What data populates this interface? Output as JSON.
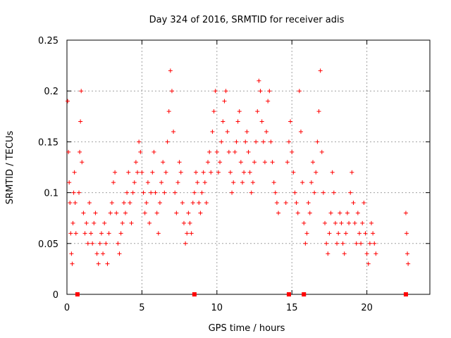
{
  "chart_data": {
    "type": "scatter",
    "title": "Day 324 of 2016, SRMTID for receiver adis",
    "xlabel": "GPS time / hours",
    "ylabel": "SRMTID / TECUs",
    "xlim": [
      0,
      24.2
    ],
    "ylim": [
      0,
      0.25
    ],
    "x_ticks": [
      0,
      5,
      10,
      15,
      20
    ],
    "y_ticks": [
      0,
      0.05,
      0.1,
      0.15,
      0.2,
      0.25
    ],
    "x_tick_labels": [
      "0",
      "5",
      "10",
      "15",
      "20"
    ],
    "y_tick_labels": [
      "0",
      "0.05",
      "0.1",
      "0.15",
      "0.2",
      "0.25"
    ],
    "grid": true,
    "marker": "+",
    "color": "#ff0000",
    "series": [
      {
        "points": [
          [
            0.05,
            0.19
          ],
          [
            0.1,
            0.14
          ],
          [
            0.15,
            0.11
          ],
          [
            0.2,
            0.09
          ],
          [
            0.25,
            0.06
          ],
          [
            0.3,
            0.04
          ],
          [
            0.35,
            0.03
          ],
          [
            0.4,
            0.07
          ],
          [
            0.45,
            0.1
          ],
          [
            0.5,
            0.12
          ],
          [
            0.55,
            0.09
          ],
          [
            0.6,
            0.06
          ],
          [
            0.8,
            0.1
          ],
          [
            0.85,
            0.14
          ],
          [
            0.9,
            0.17
          ],
          [
            0.95,
            0.2
          ],
          [
            1.0,
            0.13
          ],
          [
            1.1,
            0.08
          ],
          [
            1.2,
            0.06
          ],
          [
            1.3,
            0.07
          ],
          [
            1.4,
            0.05
          ],
          [
            1.5,
            0.09
          ],
          [
            1.6,
            0.06
          ],
          [
            1.7,
            0.05
          ],
          [
            1.8,
            0.07
          ],
          [
            1.9,
            0.08
          ],
          [
            2.0,
            0.04
          ],
          [
            2.1,
            0.03
          ],
          [
            2.2,
            0.05
          ],
          [
            2.3,
            0.06
          ],
          [
            2.4,
            0.04
          ],
          [
            2.5,
            0.07
          ],
          [
            2.6,
            0.05
          ],
          [
            2.7,
            0.03
          ],
          [
            2.8,
            0.06
          ],
          [
            2.9,
            0.08
          ],
          [
            3.0,
            0.09
          ],
          [
            3.1,
            0.11
          ],
          [
            3.2,
            0.12
          ],
          [
            3.3,
            0.08
          ],
          [
            3.4,
            0.05
          ],
          [
            3.5,
            0.04
          ],
          [
            3.6,
            0.06
          ],
          [
            3.7,
            0.07
          ],
          [
            3.8,
            0.09
          ],
          [
            3.9,
            0.08
          ],
          [
            4.0,
            0.1
          ],
          [
            4.1,
            0.12
          ],
          [
            4.2,
            0.09
          ],
          [
            4.3,
            0.07
          ],
          [
            4.4,
            0.1
          ],
          [
            4.5,
            0.11
          ],
          [
            4.6,
            0.13
          ],
          [
            4.7,
            0.12
          ],
          [
            4.8,
            0.15
          ],
          [
            4.9,
            0.14
          ],
          [
            5.0,
            0.12
          ],
          [
            5.1,
            0.1
          ],
          [
            5.2,
            0.08
          ],
          [
            5.3,
            0.09
          ],
          [
            5.4,
            0.11
          ],
          [
            5.5,
            0.07
          ],
          [
            5.6,
            0.1
          ],
          [
            5.7,
            0.12
          ],
          [
            5.8,
            0.14
          ],
          [
            5.9,
            0.1
          ],
          [
            6.0,
            0.08
          ],
          [
            6.1,
            0.06
          ],
          [
            6.2,
            0.09
          ],
          [
            6.3,
            0.11
          ],
          [
            6.4,
            0.13
          ],
          [
            6.5,
            0.1
          ],
          [
            6.6,
            0.12
          ],
          [
            6.7,
            0.15
          ],
          [
            6.8,
            0.18
          ],
          [
            6.9,
            0.22
          ],
          [
            7.0,
            0.2
          ],
          [
            7.1,
            0.16
          ],
          [
            7.2,
            0.1
          ],
          [
            7.3,
            0.08
          ],
          [
            7.4,
            0.11
          ],
          [
            7.5,
            0.13
          ],
          [
            7.6,
            0.12
          ],
          [
            7.7,
            0.09
          ],
          [
            7.8,
            0.07
          ],
          [
            7.9,
            0.05
          ],
          [
            8.0,
            0.06
          ],
          [
            8.1,
            0.08
          ],
          [
            8.2,
            0.07
          ],
          [
            8.3,
            0.06
          ],
          [
            8.4,
            0.09
          ],
          [
            8.5,
            0.1
          ],
          [
            8.6,
            0.12
          ],
          [
            8.7,
            0.11
          ],
          [
            8.8,
            0.09
          ],
          [
            8.9,
            0.08
          ],
          [
            9.0,
            0.1
          ],
          [
            9.1,
            0.12
          ],
          [
            9.2,
            0.11
          ],
          [
            9.3,
            0.09
          ],
          [
            9.4,
            0.13
          ],
          [
            9.5,
            0.14
          ],
          [
            9.6,
            0.12
          ],
          [
            9.7,
            0.16
          ],
          [
            9.8,
            0.18
          ],
          [
            9.9,
            0.2
          ],
          [
            10.0,
            0.14
          ],
          [
            10.1,
            0.12
          ],
          [
            10.2,
            0.13
          ],
          [
            10.3,
            0.15
          ],
          [
            10.4,
            0.17
          ],
          [
            10.5,
            0.19
          ],
          [
            10.6,
            0.2
          ],
          [
            10.7,
            0.16
          ],
          [
            10.8,
            0.14
          ],
          [
            10.9,
            0.12
          ],
          [
            11.0,
            0.1
          ],
          [
            11.1,
            0.11
          ],
          [
            11.2,
            0.14
          ],
          [
            11.3,
            0.15
          ],
          [
            11.4,
            0.17
          ],
          [
            11.5,
            0.18
          ],
          [
            11.6,
            0.13
          ],
          [
            11.7,
            0.11
          ],
          [
            11.8,
            0.12
          ],
          [
            11.9,
            0.15
          ],
          [
            12.0,
            0.16
          ],
          [
            12.1,
            0.14
          ],
          [
            12.2,
            0.12
          ],
          [
            12.3,
            0.1
          ],
          [
            12.4,
            0.11
          ],
          [
            12.5,
            0.13
          ],
          [
            12.6,
            0.15
          ],
          [
            12.7,
            0.18
          ],
          [
            12.8,
            0.21
          ],
          [
            12.9,
            0.2
          ],
          [
            13.0,
            0.17
          ],
          [
            13.1,
            0.15
          ],
          [
            13.2,
            0.13
          ],
          [
            13.3,
            0.16
          ],
          [
            13.4,
            0.19
          ],
          [
            13.5,
            0.2
          ],
          [
            13.6,
            0.15
          ],
          [
            13.7,
            0.13
          ],
          [
            13.8,
            0.11
          ],
          [
            13.9,
            0.1
          ],
          [
            14.0,
            0.09
          ],
          [
            14.1,
            0.08
          ],
          [
            14.6,
            0.09
          ],
          [
            14.7,
            0.13
          ],
          [
            14.8,
            0.15
          ],
          [
            14.9,
            0.17
          ],
          [
            15.0,
            0.14
          ],
          [
            15.1,
            0.12
          ],
          [
            15.2,
            0.1
          ],
          [
            15.3,
            0.09
          ],
          [
            15.4,
            0.08
          ],
          [
            15.5,
            0.2
          ],
          [
            15.6,
            0.16
          ],
          [
            15.7,
            0.11
          ],
          [
            15.8,
            0.07
          ],
          [
            15.9,
            0.05
          ],
          [
            16.0,
            0.06
          ],
          [
            16.1,
            0.09
          ],
          [
            16.2,
            0.08
          ],
          [
            16.3,
            0.11
          ],
          [
            16.4,
            0.13
          ],
          [
            16.5,
            0.1
          ],
          [
            16.6,
            0.12
          ],
          [
            16.7,
            0.15
          ],
          [
            16.8,
            0.18
          ],
          [
            16.9,
            0.22
          ],
          [
            17.0,
            0.14
          ],
          [
            17.1,
            0.1
          ],
          [
            17.2,
            0.07
          ],
          [
            17.3,
            0.05
          ],
          [
            17.4,
            0.04
          ],
          [
            17.5,
            0.06
          ],
          [
            17.6,
            0.08
          ],
          [
            17.7,
            0.12
          ],
          [
            17.8,
            0.1
          ],
          [
            17.9,
            0.07
          ],
          [
            18.0,
            0.05
          ],
          [
            18.1,
            0.06
          ],
          [
            18.2,
            0.08
          ],
          [
            18.3,
            0.07
          ],
          [
            18.4,
            0.05
          ],
          [
            18.5,
            0.04
          ],
          [
            18.6,
            0.06
          ],
          [
            18.7,
            0.08
          ],
          [
            18.8,
            0.07
          ],
          [
            18.9,
            0.1
          ],
          [
            19.0,
            0.12
          ],
          [
            19.1,
            0.09
          ],
          [
            19.2,
            0.07
          ],
          [
            19.3,
            0.05
          ],
          [
            19.4,
            0.08
          ],
          [
            19.5,
            0.06
          ],
          [
            19.6,
            0.05
          ],
          [
            19.7,
            0.07
          ],
          [
            19.8,
            0.09
          ],
          [
            19.9,
            0.06
          ],
          [
            20.0,
            0.04
          ],
          [
            20.1,
            0.03
          ],
          [
            20.2,
            0.05
          ],
          [
            20.3,
            0.07
          ],
          [
            20.4,
            0.06
          ],
          [
            20.5,
            0.05
          ],
          [
            20.6,
            0.04
          ],
          [
            22.6,
            0.08
          ],
          [
            22.65,
            0.06
          ],
          [
            22.7,
            0.04
          ],
          [
            22.75,
            0.03
          ]
        ]
      }
    ],
    "zero_markers": [
      0.7,
      8.5,
      14.8,
      15.8,
      22.6
    ]
  }
}
